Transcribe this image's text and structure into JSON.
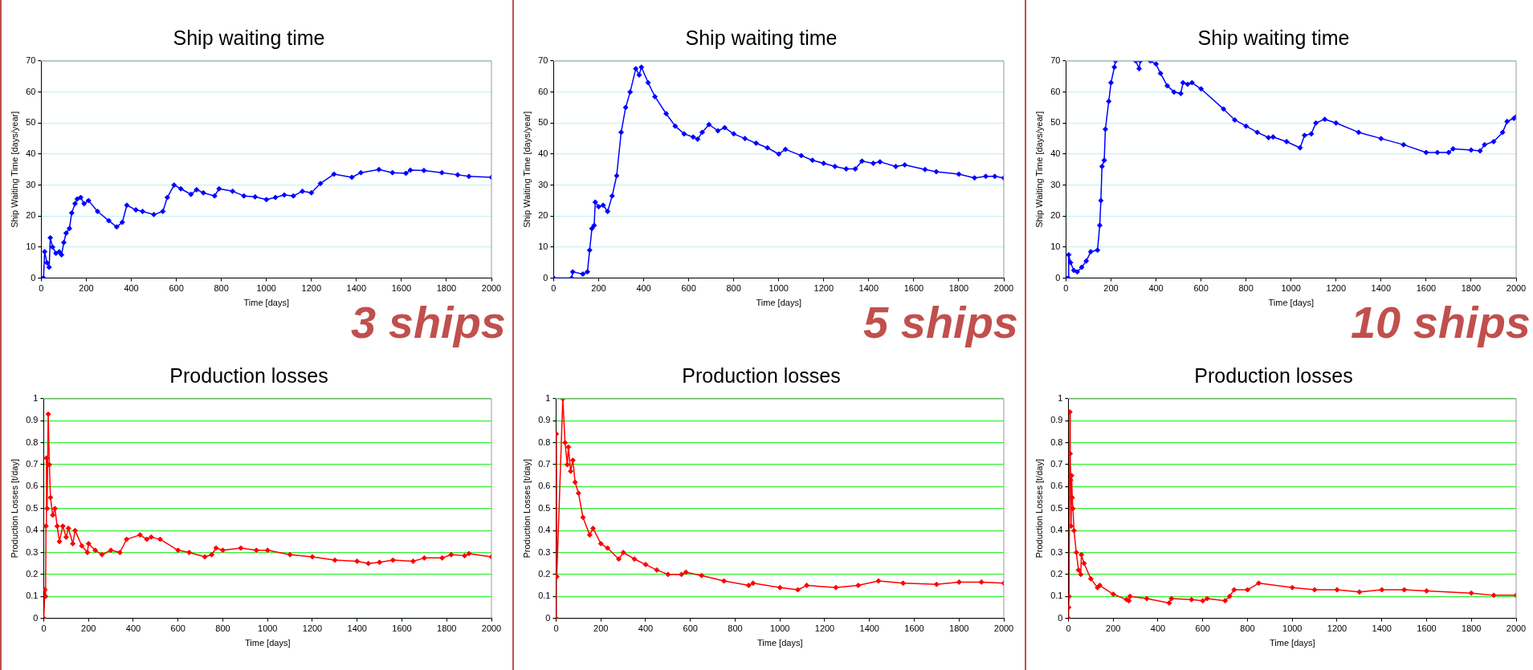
{
  "chart_data": [
    {
      "type": "line",
      "title": "Ship waiting time",
      "xlabel": "Time [days]",
      "ylabel": "Ship Waiting Time [days/year]",
      "annotations": [
        "3 ships"
      ],
      "grid": "y",
      "marker": "diamond",
      "xlim": [
        0,
        2000
      ],
      "xticks": [
        0,
        200,
        400,
        600,
        800,
        1000,
        1200,
        1400,
        1600,
        1800,
        2000
      ],
      "ylim": [
        0,
        70
      ],
      "yticks": [
        0,
        10,
        20,
        30,
        40,
        50,
        60,
        70
      ],
      "x": [
        0,
        10,
        15,
        25,
        35,
        40,
        50,
        65,
        80,
        90,
        100,
        110,
        125,
        135,
        150,
        160,
        175,
        190,
        210,
        250,
        300,
        335,
        360,
        380,
        420,
        450,
        500,
        540,
        560,
        590,
        620,
        665,
        690,
        720,
        770,
        790,
        850,
        900,
        950,
        1000,
        1040,
        1080,
        1120,
        1160,
        1200,
        1240,
        1300,
        1380,
        1420,
        1500,
        1560,
        1620,
        1640,
        1700,
        1780,
        1850,
        1900,
        2000
      ],
      "series": [
        {
          "color": "#0000ff",
          "values": [
            0,
            0,
            8.5,
            5,
            3.5,
            13,
            10,
            8,
            8.5,
            7.5,
            11.5,
            14.5,
            16,
            21,
            24,
            25.5,
            26,
            24,
            25,
            21.5,
            18.5,
            16.5,
            18,
            23.5,
            22,
            21.5,
            20.5,
            21.5,
            26,
            30,
            28.8,
            27,
            28.5,
            27.5,
            26.5,
            28.8,
            28,
            26.5,
            26.2,
            25.3,
            26,
            26.8,
            26.5,
            28,
            27.5,
            30.5,
            33.5,
            32.5,
            34,
            35,
            34,
            33.8,
            34.8,
            34.7,
            34,
            33.3,
            32.8,
            32.5
          ]
        }
      ]
    },
    {
      "type": "line",
      "title": "Ship waiting time",
      "xlabel": "Time [days]",
      "ylabel": "Ship Waiting Time [days/year]",
      "annotations": [
        "5 ships"
      ],
      "grid": "y",
      "marker": "diamond",
      "xlim": [
        0,
        2000
      ],
      "xticks": [
        0,
        200,
        400,
        600,
        800,
        1000,
        1200,
        1400,
        1600,
        1800,
        2000
      ],
      "ylim": [
        0,
        70
      ],
      "yticks": [
        0,
        10,
        20,
        30,
        40,
        50,
        60,
        70
      ],
      "x": [
        0,
        80,
        85,
        130,
        150,
        160,
        170,
        180,
        185,
        200,
        220,
        240,
        260,
        280,
        300,
        320,
        340,
        365,
        380,
        390,
        420,
        450,
        500,
        540,
        580,
        620,
        640,
        660,
        690,
        730,
        760,
        800,
        850,
        900,
        950,
        1000,
        1030,
        1100,
        1150,
        1200,
        1250,
        1300,
        1340,
        1370,
        1420,
        1450,
        1520,
        1560,
        1650,
        1700,
        1800,
        1870,
        1920,
        1960,
        2000
      ],
      "series": [
        {
          "color": "#0000ff",
          "values": [
            0,
            0,
            2,
            1.3,
            2,
            9,
            16,
            17,
            24.5,
            23,
            23.5,
            21.5,
            26.5,
            33,
            47,
            55,
            60,
            67.5,
            65.5,
            68,
            63,
            58.5,
            53,
            49,
            46.5,
            45.5,
            44.8,
            47,
            49.5,
            47.5,
            48.5,
            46.5,
            45,
            43.5,
            42,
            40,
            41.5,
            39.5,
            38,
            37,
            36,
            35.2,
            35.2,
            37.7,
            37,
            37.5,
            36,
            36.5,
            35,
            34.3,
            33.5,
            32.3,
            32.8,
            32.8,
            32.3
          ]
        }
      ]
    },
    {
      "type": "line",
      "title": "Ship waiting time",
      "xlabel": "Time [days]",
      "ylabel": "Ship Waiting Time [days/year]",
      "annotations": [
        "10 ships"
      ],
      "grid": "y",
      "marker": "diamond",
      "xlim": [
        0,
        2000
      ],
      "xticks": [
        0,
        200,
        400,
        600,
        800,
        1000,
        1200,
        1400,
        1600,
        1800,
        2000
      ],
      "ylim": [
        0,
        70
      ],
      "yticks": [
        0,
        10,
        20,
        30,
        40,
        50,
        60,
        70
      ],
      "x": [
        0,
        10,
        12,
        20,
        35,
        50,
        70,
        90,
        110,
        140,
        150,
        155,
        160,
        170,
        175,
        190,
        200,
        215,
        220,
        260,
        310,
        325,
        330,
        350,
        375,
        400,
        420,
        450,
        480,
        510,
        520,
        540,
        560,
        600,
        700,
        750,
        800,
        850,
        900,
        920,
        980,
        1040,
        1060,
        1090,
        1110,
        1150,
        1200,
        1300,
        1400,
        1500,
        1600,
        1650,
        1700,
        1720,
        1800,
        1840,
        1860,
        1900,
        1940,
        1960,
        1990,
        2000
      ],
      "series": [
        {
          "color": "#0000ff",
          "values": [
            0,
            0,
            7.5,
            5,
            2.5,
            2,
            3.5,
            5.5,
            8.5,
            9,
            17,
            25,
            36,
            38,
            48,
            57,
            63,
            68,
            70,
            null,
            70,
            67.5,
            70,
            null,
            70,
            69,
            66,
            62,
            60,
            59.5,
            63,
            62.5,
            63,
            61,
            54.5,
            51,
            49,
            47,
            45.3,
            45.5,
            44,
            42,
            46,
            46.5,
            50,
            51.2,
            50,
            47,
            45,
            43,
            40.5,
            40.5,
            40.5,
            41.7,
            41.3,
            41,
            43,
            44,
            47,
            50.5,
            51.5,
            52
          ]
        }
      ]
    },
    {
      "type": "line",
      "title": "Production losses",
      "xlabel": "Time [days]",
      "ylabel": "Production Losses [t/day]",
      "grid": "y",
      "marker": "diamond",
      "xlim": [
        0,
        2000
      ],
      "xticks": [
        0,
        200,
        400,
        600,
        800,
        1000,
        1200,
        1400,
        1600,
        1800,
        2000
      ],
      "ylim": [
        0,
        1
      ],
      "yticks": [
        0,
        0.1,
        0.2,
        0.3,
        0.4,
        0.5,
        0.6,
        0.7,
        0.8,
        0.9,
        1
      ],
      "x": [
        0,
        5,
        8,
        10,
        12,
        15,
        20,
        25,
        30,
        40,
        50,
        60,
        70,
        85,
        100,
        110,
        130,
        140,
        170,
        195,
        200,
        230,
        260,
        300,
        340,
        370,
        430,
        460,
        480,
        520,
        600,
        650,
        720,
        750,
        770,
        800,
        880,
        950,
        1000,
        1100,
        1200,
        1300,
        1400,
        1450,
        1500,
        1560,
        1650,
        1700,
        1780,
        1820,
        1880,
        1900,
        2000
      ],
      "series": [
        {
          "color": "#ff0000",
          "values": [
            0,
            0.13,
            0.1,
            0.42,
            0.73,
            0.5,
            0.93,
            0.7,
            0.55,
            0.47,
            0.5,
            0.42,
            0.35,
            0.42,
            0.37,
            0.41,
            0.34,
            0.4,
            0.33,
            0.3,
            0.34,
            0.31,
            0.29,
            0.31,
            0.3,
            0.36,
            0.38,
            0.36,
            0.37,
            0.36,
            0.31,
            0.3,
            0.28,
            0.29,
            0.32,
            0.31,
            0.32,
            0.31,
            0.31,
            0.29,
            0.28,
            0.265,
            0.26,
            0.25,
            0.255,
            0.265,
            0.26,
            0.275,
            0.275,
            0.29,
            0.285,
            0.295,
            0.28
          ]
        }
      ]
    },
    {
      "type": "line",
      "title": "Production losses",
      "xlabel": "Time [days]",
      "ylabel": "Production Losses [t/day]",
      "grid": "y",
      "marker": "diamond",
      "xlim": [
        0,
        2000
      ],
      "xticks": [
        0,
        200,
        400,
        600,
        800,
        1000,
        1200,
        1400,
        1600,
        1800,
        2000
      ],
      "ylim": [
        0,
        1
      ],
      "yticks": [
        0,
        0.1,
        0.2,
        0.3,
        0.4,
        0.5,
        0.6,
        0.7,
        0.8,
        0.9,
        1
      ],
      "x": [
        0,
        1,
        3,
        30,
        40,
        50,
        55,
        65,
        75,
        85,
        100,
        120,
        150,
        165,
        200,
        230,
        280,
        300,
        350,
        400,
        450,
        500,
        560,
        580,
        650,
        750,
        860,
        880,
        1000,
        1080,
        1120,
        1250,
        1350,
        1440,
        1550,
        1700,
        1800,
        1900,
        2000
      ],
      "series": [
        {
          "color": "#ff0000",
          "values": [
            0,
            0.84,
            0.19,
            1,
            0.8,
            0.7,
            0.78,
            0.67,
            0.72,
            0.62,
            0.57,
            0.46,
            0.38,
            0.41,
            0.34,
            0.32,
            0.27,
            0.3,
            0.27,
            0.245,
            0.22,
            0.2,
            0.2,
            0.21,
            0.195,
            0.17,
            0.15,
            0.16,
            0.14,
            0.13,
            0.15,
            0.14,
            0.15,
            0.17,
            0.16,
            0.155,
            0.165,
            0.165,
            0.16
          ]
        }
      ]
    },
    {
      "type": "line",
      "title": "Production losses",
      "xlabel": "Time [days]",
      "ylabel": "Production Losses [t/day]",
      "grid": "y",
      "marker": "diamond",
      "xlim": [
        0,
        2000
      ],
      "xticks": [
        0,
        200,
        400,
        600,
        800,
        1000,
        1200,
        1400,
        1600,
        1800,
        2000
      ],
      "ylim": [
        0,
        1
      ],
      "yticks": [
        0,
        0.1,
        0.2,
        0.3,
        0.4,
        0.5,
        0.6,
        0.7,
        0.8,
        0.9,
        1
      ],
      "x": [
        0,
        1,
        3,
        6,
        8,
        10,
        12,
        14,
        17,
        20,
        25,
        35,
        45,
        55,
        58,
        70,
        100,
        130,
        140,
        200,
        260,
        270,
        275,
        350,
        450,
        460,
        550,
        600,
        620,
        700,
        720,
        740,
        800,
        850,
        1000,
        1100,
        1200,
        1300,
        1400,
        1500,
        1600,
        1800,
        1900,
        2000
      ],
      "series": [
        {
          "color": "#ff0000",
          "values": [
            0,
            0.05,
            0.1,
            0.94,
            0.75,
            0.63,
            0.42,
            0.65,
            0.55,
            0.5,
            0.4,
            0.3,
            0.22,
            0.2,
            0.29,
            0.25,
            0.18,
            0.14,
            0.15,
            0.11,
            0.085,
            0.08,
            0.1,
            0.09,
            0.07,
            0.09,
            0.085,
            0.08,
            0.09,
            0.08,
            0.1,
            0.13,
            0.13,
            0.16,
            0.14,
            0.13,
            0.13,
            0.12,
            0.13,
            0.13,
            0.125,
            0.115,
            0.105,
            0.105
          ]
        }
      ]
    }
  ]
}
